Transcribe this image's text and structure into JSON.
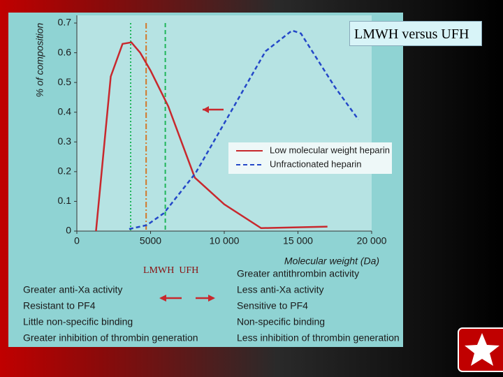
{
  "chart_data": {
    "type": "line",
    "title": "LMWH versus UFH",
    "x_label": "Molecular weight (Da)",
    "y_label": "% of composition",
    "xlim": [
      0,
      20000
    ],
    "ylim": [
      0,
      0.7
    ],
    "xticks": [
      0,
      5000,
      {
        "value": 10000,
        "label": "10 000"
      },
      {
        "value": 15000,
        "label": "15 000"
      },
      {
        "value": 20000,
        "label": "20 000"
      }
    ],
    "yticks": [
      0,
      0.1,
      0.2,
      0.3,
      0.4,
      0.5,
      0.6,
      0.7
    ],
    "series": [
      {
        "name": "Low molecular weight heparin",
        "color": "#c8282d",
        "line_style": "solid",
        "x": [
          1300,
          2300,
          3100,
          3700,
          4300,
          5000,
          6200,
          8000,
          10000,
          12500,
          17000
        ],
        "values": [
          0,
          0.52,
          0.63,
          0.635,
          0.6,
          0.54,
          0.42,
          0.18,
          0.09,
          0.01,
          0.015
        ]
      },
      {
        "name": "Unfractionated heparin",
        "color": "#2448c8",
        "line_style": "dashed",
        "x": [
          3550,
          4750,
          5900,
          8050,
          10200,
          12800,
          14600,
          15200,
          17500,
          19100
        ],
        "values": [
          0.007,
          0.02,
          0.06,
          0.195,
          0.38,
          0.605,
          0.675,
          0.665,
          0.485,
          0.375
        ]
      }
    ],
    "reference_lines": [
      {
        "x": 3650,
        "color": "#1fb55a",
        "line_style": "dotted"
      },
      {
        "x": 4700,
        "color": "#d2782a",
        "line_style": "dashdot"
      },
      {
        "x": 6000,
        "color": "#1fb55a",
        "line_style": "dashed"
      }
    ]
  },
  "comparison": {
    "labels": "LMWH  UFH",
    "left_items": [
      "Greater anti-Xa activity",
      "Resistant to PF4",
      "Little non-specific binding",
      "Greater inhibition of thrombin generation"
    ],
    "right_items": [
      "Greater antithrombin activity",
      "Less anti-Xa activity",
      "Sensitive to PF4",
      "Non-specific binding",
      "Less inhibition of thrombin generation"
    ]
  }
}
